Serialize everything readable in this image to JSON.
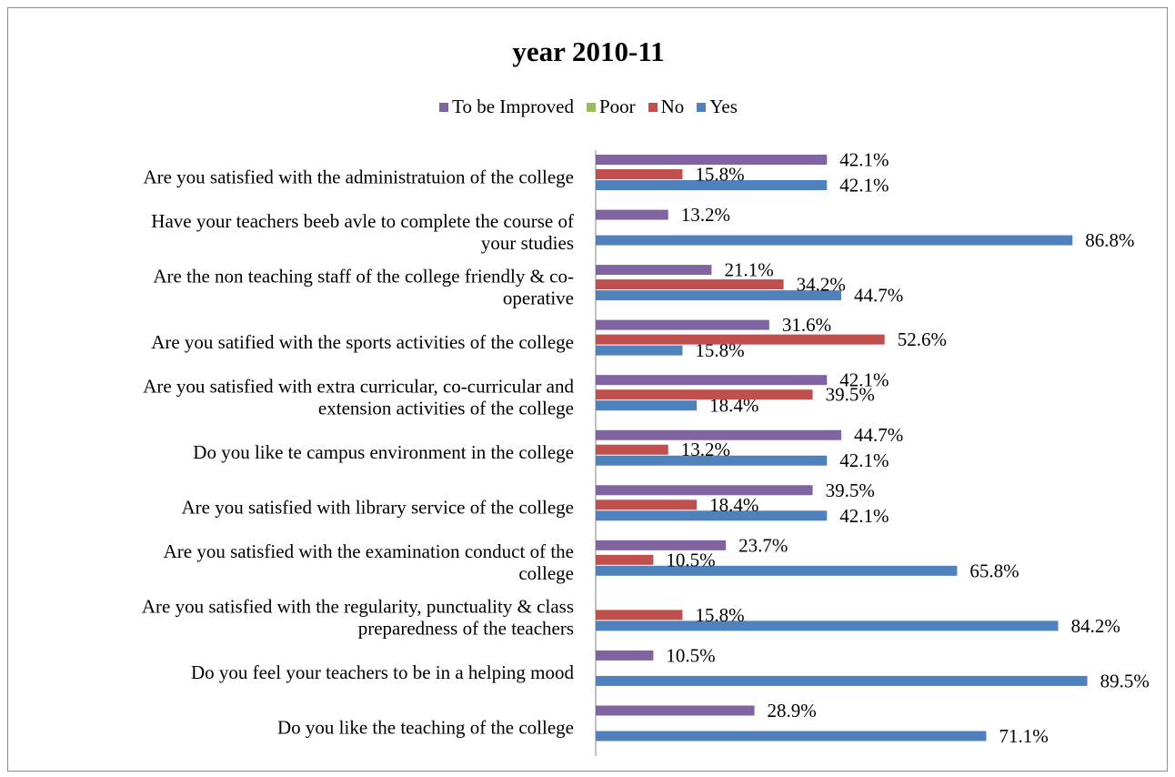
{
  "chart_data": {
    "type": "bar",
    "orientation": "horizontal",
    "title": "year 2010-11",
    "legend_position": "top",
    "grid": false,
    "xlim": [
      0,
      100
    ],
    "categories": [
      "Are you satisfied with the administratuion of the college",
      "Have your teachers beeb avle to complete the course of your studies",
      "Are the non teaching staff of the college friendly & co-operative",
      "Are you satified with the sports activities of the college",
      "Are you satisfied with extra curricular, co-curricular and extension activities of the college",
      "Do you like te campus environment in the college",
      "Are you satisfied with library service of the college",
      "Are you satisfied with the examination conduct of the college",
      "Are you satisfied with the regularity, punctuality & class preparedness of the teachers",
      "Do you feel your teachers to be in a helping mood",
      "Do you like the teaching of the college"
    ],
    "category_lines": [
      [
        "Are you satisfied with the administratuion of the college"
      ],
      [
        "Have your teachers beeb avle to complete the course of",
        "your studies"
      ],
      [
        "Are the non teaching staff of the college friendly & co-",
        "operative"
      ],
      [
        "Are you satified with the sports activities of the college"
      ],
      [
        "Are you satisfied with extra curricular, co-curricular and",
        "extension activities of the college"
      ],
      [
        "Do you like te campus environment in the college"
      ],
      [
        "Are you satisfied with library service of the college"
      ],
      [
        "Are you satisfied with the examination conduct of the",
        "college"
      ],
      [
        "Are you satisfied with the regularity, punctuality & class",
        "preparedness of the teachers"
      ],
      [
        "Do you feel your teachers to be in a helping mood"
      ],
      [
        "Do you like the teaching of the college"
      ]
    ],
    "series": [
      {
        "name": "Yes",
        "color": "#4f81bd",
        "values": [
          42.1,
          86.8,
          44.7,
          15.8,
          18.4,
          42.1,
          42.1,
          65.8,
          84.2,
          89.5,
          71.1
        ],
        "labels": [
          "42.1%",
          "86.8%",
          "44.7%",
          "15.8%",
          "18.4%",
          "42.1%",
          "42.1%",
          "65.8%",
          "84.2%",
          "89.5%",
          "71.1%"
        ]
      },
      {
        "name": "No",
        "color": "#c0504d",
        "values": [
          15.8,
          null,
          34.2,
          52.6,
          39.5,
          13.2,
          18.4,
          10.5,
          15.8,
          null,
          null
        ],
        "labels": [
          "15.8%",
          null,
          "34.2%",
          "52.6%",
          "39.5%",
          "13.2%",
          "18.4%",
          "10.5%",
          "15.8%",
          null,
          null
        ]
      },
      {
        "name": "Poor",
        "color": "#9bbb59",
        "values": [
          null,
          null,
          null,
          null,
          null,
          null,
          null,
          null,
          null,
          null,
          null
        ],
        "labels": [
          null,
          null,
          null,
          null,
          null,
          null,
          null,
          null,
          null,
          null,
          null
        ]
      },
      {
        "name": "To be Improved",
        "color": "#8064a2",
        "values": [
          42.1,
          13.2,
          21.1,
          31.6,
          42.1,
          44.7,
          39.5,
          23.7,
          null,
          10.5,
          28.9
        ],
        "labels": [
          "42.1%",
          "13.2%",
          "21.1%",
          "31.6%",
          "42.1%",
          "44.7%",
          "39.5%",
          "23.7%",
          null,
          "10.5%",
          "28.9%"
        ]
      }
    ],
    "legend_order": [
      "To be Improved",
      "Poor",
      "No",
      "Yes"
    ]
  }
}
